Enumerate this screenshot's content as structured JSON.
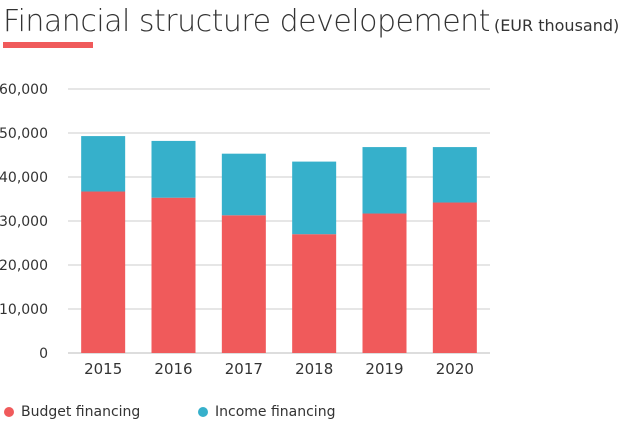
{
  "header": {
    "title": "Financial structure developement",
    "subtitle": "(EUR thousand)"
  },
  "colors": {
    "accent": "#f05a5b",
    "budget": "#f05a5b",
    "income": "#36b0cb",
    "grid": "#cccccc",
    "text": "#333333"
  },
  "chart_data": {
    "type": "bar",
    "stacked": true,
    "title": "Financial structure developement",
    "subtitle": "(EUR thousand)",
    "categories": [
      "2015",
      "2016",
      "2017",
      "2018",
      "2019",
      "2020"
    ],
    "series": [
      {
        "name": "Budget financing",
        "color": "#f05a5b",
        "values": [
          36700,
          35300,
          31300,
          27000,
          31700,
          34200
        ]
      },
      {
        "name": "Income financing",
        "color": "#36b0cb",
        "values": [
          12600,
          12900,
          14000,
          16500,
          15100,
          12600
        ]
      }
    ],
    "ylim": [
      0,
      60000
    ],
    "yticks": [
      "0",
      "10,000",
      "20,000",
      "30,000",
      "40,000",
      "50,000",
      "60,000"
    ],
    "ytick_values": [
      0,
      10000,
      20000,
      30000,
      40000,
      50000,
      60000
    ],
    "grid": true,
    "legend_position": "bottom-left"
  },
  "legend": {
    "items": [
      {
        "label": "Budget financing",
        "color": "#f05a5b"
      },
      {
        "label": "Income financing",
        "color": "#36b0cb"
      }
    ]
  }
}
